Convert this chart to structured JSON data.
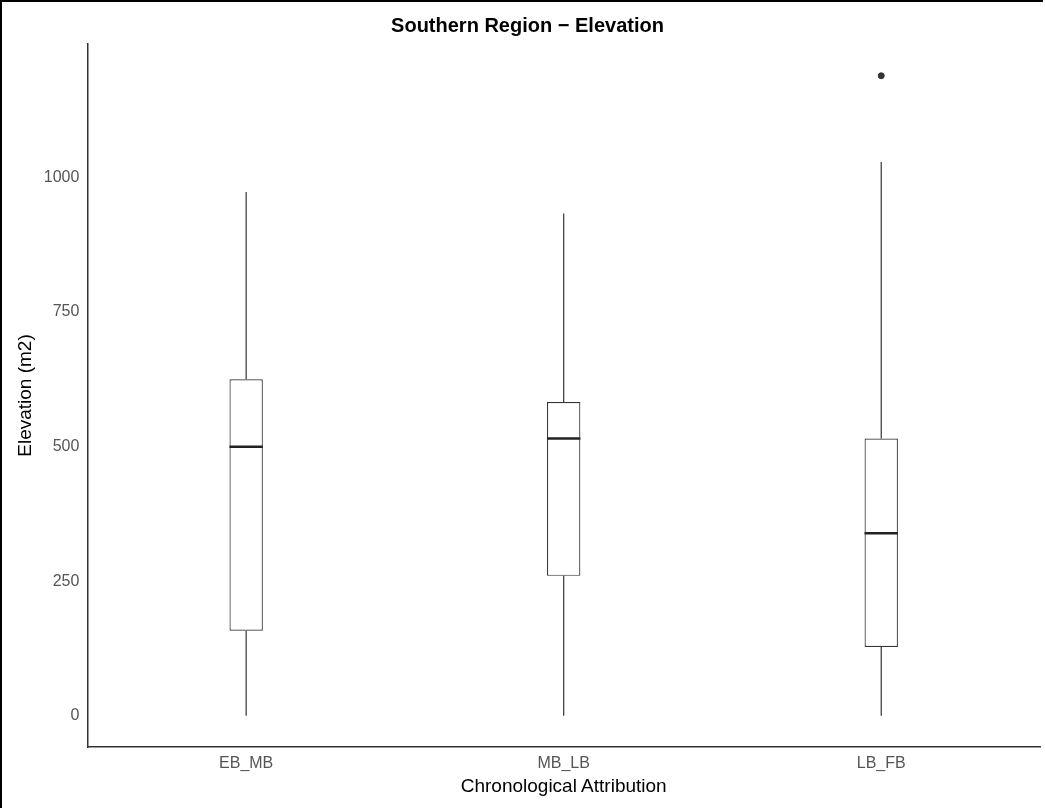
{
  "chart_data": {
    "type": "box",
    "title": "Southern Region − Elevation",
    "xlabel": "Chronological Attribution",
    "ylabel": "Elevation (m2)",
    "categories": [
      "EB_MB",
      "MB_LB",
      "LB_FB"
    ],
    "boxes": [
      {
        "low": 0,
        "q1": 158,
        "median": 500,
        "q3": 625,
        "high": 973
      },
      {
        "low": 0,
        "q1": 260,
        "median": 515,
        "q3": 583,
        "high": 933
      },
      {
        "low": 0,
        "q1": 128,
        "median": 339,
        "q3": 515,
        "high": 1029,
        "outliers": [
          1189
        ]
      }
    ],
    "ylim": [
      -58,
      1248
    ],
    "yticks": [
      0,
      250,
      500,
      750,
      1000
    ],
    "grid": false,
    "legend": false
  }
}
